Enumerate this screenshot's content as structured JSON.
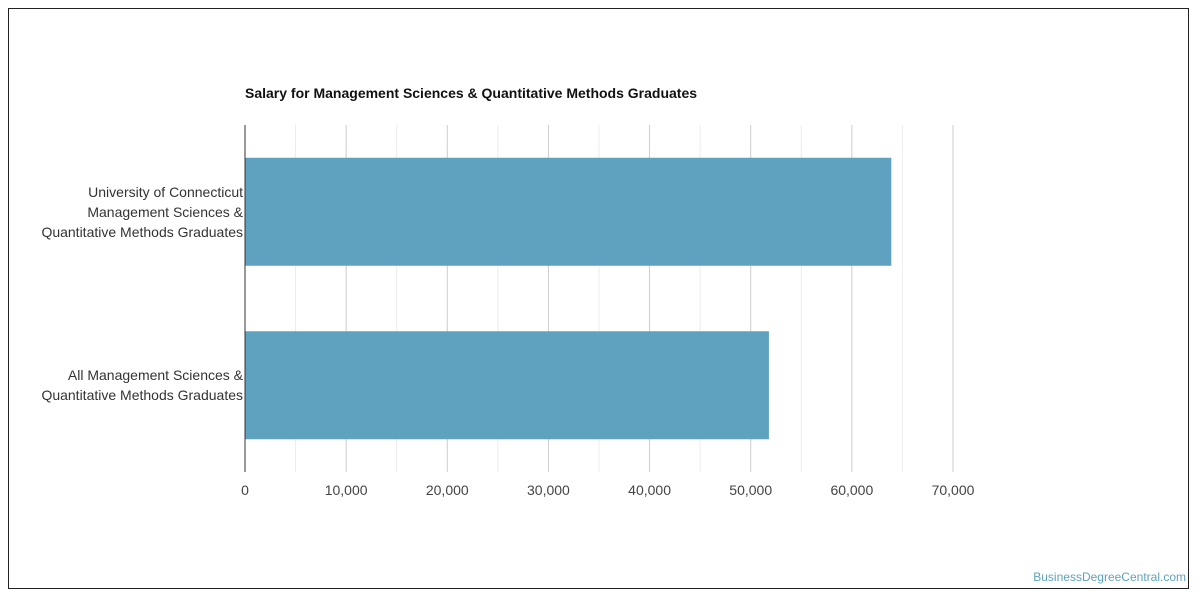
{
  "chart_data": {
    "type": "bar",
    "orientation": "horizontal",
    "title": "Salary for Management Sciences & Quantitative Methods Graduates",
    "categories": [
      "University of Connecticut\nManagement Sciences &\nQuantitative Methods Graduates",
      "All Management Sciences &\nQuantitative Methods Graduates"
    ],
    "values": [
      63900,
      51800
    ],
    "xlim": [
      0,
      70000
    ],
    "xticks": [
      "0",
      "10,000",
      "20,000",
      "30,000",
      "40,000",
      "50,000",
      "60,000",
      "70,000"
    ],
    "grid": true,
    "bar_color": "#5ea2bf"
  },
  "watermark": "BusinessDegreeCentral.com"
}
